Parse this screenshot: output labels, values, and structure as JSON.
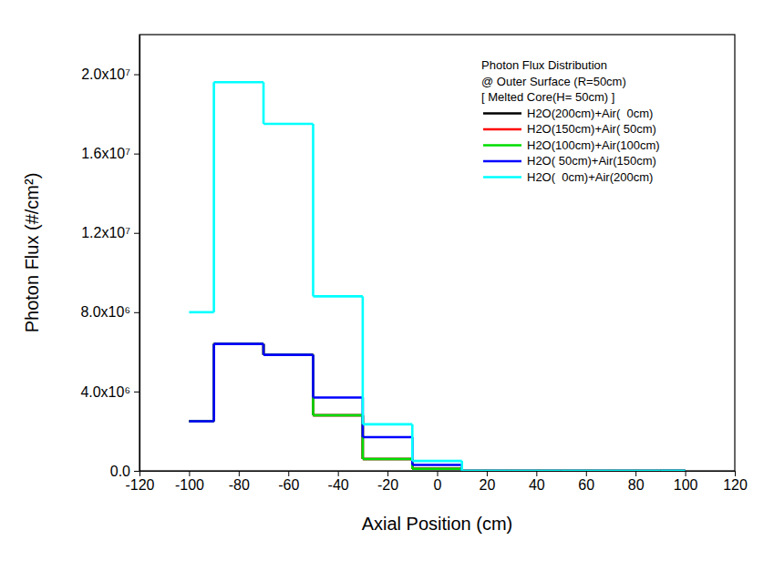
{
  "chart_data": {
    "type": "histogram",
    "x_label": "Axial Position (cm)",
    "y_label": "Photon Flux (#/cm²)",
    "legend_title": [
      "Photon Flux Distribution",
      "@ Outer Surface (R=50cm)",
      "[ Melted Core(H= 50cm) ]"
    ],
    "legend": "upper right",
    "bins": [
      -100,
      -90,
      -70,
      -50,
      -30,
      -10,
      10,
      30,
      50,
      70,
      90,
      100
    ],
    "series": [
      {
        "name": "H2O(200cm)+Air(  0cm)",
        "color": "#000000",
        "values": [
          2500000,
          6400000,
          5850000,
          2800000,
          600000,
          100000,
          0,
          0,
          0,
          0,
          0
        ]
      },
      {
        "name": "H2O(150cm)+Air( 50cm)",
        "color": "#ff0000",
        "values": [
          2500000,
          6400000,
          5850000,
          2800000,
          600000,
          100000,
          0,
          0,
          0,
          0,
          0
        ]
      },
      {
        "name": "H2O(100cm)+Air(100cm)",
        "color": "#00dd00",
        "values": [
          2500000,
          6400000,
          5850000,
          2800000,
          600000,
          100000,
          0,
          0,
          0,
          0,
          0
        ]
      },
      {
        "name": "H2O( 50cm)+Air(150cm)",
        "color": "#0000ff",
        "values": [
          2500000,
          6400000,
          5850000,
          3700000,
          1700000,
          300000,
          0,
          0,
          0,
          0,
          0
        ]
      },
      {
        "name": "H2O(  0cm)+Air(200cm)",
        "color": "#00ffff",
        "values": [
          8000000,
          19600000,
          17500000,
          8800000,
          2350000,
          500000,
          0,
          0,
          0,
          0,
          0
        ]
      }
    ],
    "xlim": [
      -120,
      120
    ],
    "xticks": [
      -120,
      -100,
      -80,
      -60,
      -40,
      -20,
      0,
      20,
      40,
      60,
      80,
      100,
      120
    ],
    "ylim": [
      0,
      22000000
    ],
    "yticks": [
      {
        "value": 0,
        "label": "0.0"
      },
      {
        "value": 4000000,
        "label": "4.0x10⁶"
      },
      {
        "value": 8000000,
        "label": "8.0x10⁶"
      },
      {
        "value": 12000000,
        "label": "1.2x10⁷"
      },
      {
        "value": 16000000,
        "label": "1.6x10⁷"
      },
      {
        "value": 20000000,
        "label": "2.0x10⁷"
      }
    ]
  }
}
